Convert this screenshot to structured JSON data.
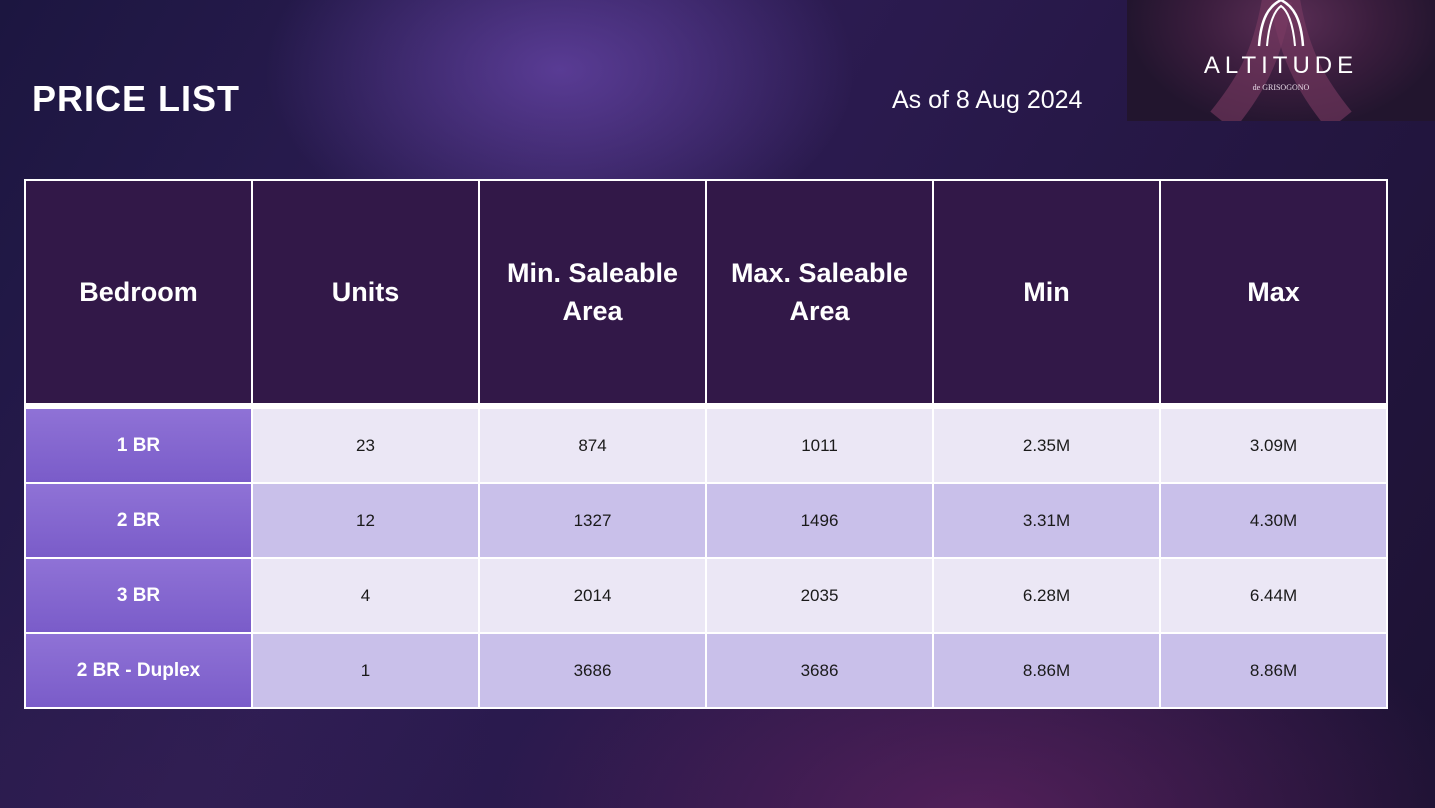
{
  "header": {
    "title": "PRICE LIST",
    "date": "As of 8 Aug 2024"
  },
  "logo": {
    "name": "ALTITUDE",
    "sub": "de GRISOGONO"
  },
  "table": {
    "columns": [
      "Bedroom",
      "Units",
      "Min. Saleable Area",
      "Max. Saleable Area",
      "Min",
      "Max"
    ],
    "rows": [
      [
        "1 BR",
        "23",
        "874",
        "1011",
        "2.35M",
        "3.09M"
      ],
      [
        "2 BR",
        "12",
        "1327",
        "1496",
        "3.31M",
        "4.30M"
      ],
      [
        "3 BR",
        "4",
        "2014",
        "2035",
        "6.28M",
        "6.44M"
      ],
      [
        "2 BR - Duplex",
        "1",
        "3686",
        "3686",
        "8.86M",
        "8.86M"
      ]
    ]
  },
  "colors": {
    "header_bg": "#321848",
    "label_cell": "#8a6dd5",
    "row_light": "#ebe7f5",
    "row_dark": "#c9c0ea"
  }
}
